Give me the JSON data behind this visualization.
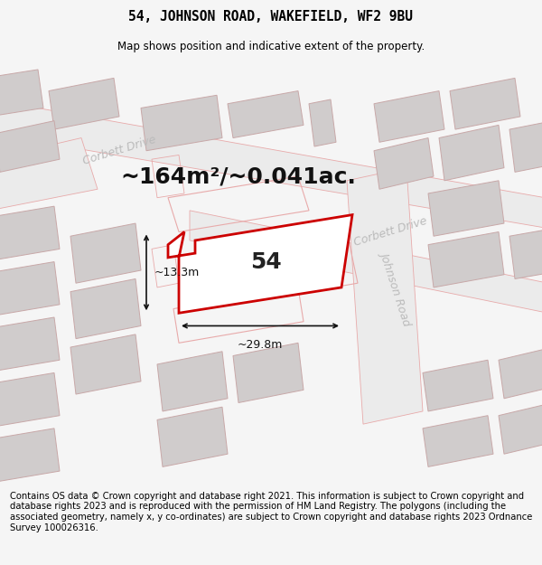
{
  "title_line1": "54, JOHNSON ROAD, WAKEFIELD, WF2 9BU",
  "title_line2": "Map shows position and indicative extent of the property.",
  "area_label": "~164m²/~0.041ac.",
  "number_label": "54",
  "width_label": "~29.8m",
  "height_label": "~13.3m",
  "footer_text": "Contains OS data © Crown copyright and database right 2021. This information is subject to Crown copyright and database rights 2023 and is reproduced with the permission of HM Land Registry. The polygons (including the associated geometry, namely x, y co-ordinates) are subject to Crown copyright and database rights 2023 Ordnance Survey 100026316.",
  "bg_color": "#f5f5f5",
  "map_bg": "#f0eeee",
  "building_fill": "#d0cccc",
  "building_edge": "#c8a8a8",
  "road_outline_color": "#e8aaaa",
  "property_stroke": "#cc0000",
  "property_fill": "#ffffff",
  "street_color": "#bbbbbb",
  "dim_color": "#111111",
  "corbett_drive_label1": "Corbett Drive",
  "corbett_drive_label2": "Corbett Drive",
  "johnson_road_label": "Johnson Road",
  "corbett_rot1": 17,
  "corbett_rot2": 17,
  "johnson_rot": -72,
  "title_fontsize": 10.5,
  "subtitle_fontsize": 8.5,
  "footer_fontsize": 7.2,
  "area_fontsize": 18,
  "label54_fontsize": 18,
  "dim_fontsize": 9,
  "street_fontsize": 9
}
